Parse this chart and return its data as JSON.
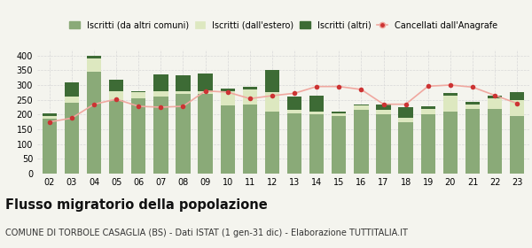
{
  "years": [
    "02",
    "03",
    "04",
    "05",
    "06",
    "07",
    "08",
    "09",
    "10",
    "11",
    "12",
    "13",
    "14",
    "15",
    "16",
    "17",
    "18",
    "19",
    "20",
    "21",
    "22",
    "23"
  ],
  "iscritti_altri_comuni": [
    185,
    240,
    345,
    250,
    255,
    260,
    270,
    270,
    230,
    235,
    210,
    205,
    200,
    195,
    215,
    200,
    175,
    200,
    210,
    220,
    220,
    195
  ],
  "iscritti_estero": [
    10,
    20,
    45,
    28,
    20,
    18,
    8,
    10,
    50,
    50,
    65,
    10,
    10,
    10,
    15,
    15,
    15,
    18,
    55,
    15,
    35,
    55
  ],
  "iscritti_altri": [
    8,
    50,
    8,
    40,
    5,
    58,
    55,
    58,
    8,
    8,
    75,
    45,
    55,
    5,
    5,
    20,
    35,
    10,
    8,
    8,
    8,
    25
  ],
  "cancellati": [
    175,
    188,
    235,
    252,
    228,
    225,
    228,
    280,
    276,
    254,
    264,
    272,
    295,
    295,
    285,
    235,
    235,
    296,
    300,
    293,
    265,
    238
  ],
  "color_altri_comuni": "#8aaa78",
  "color_estero": "#dde8c0",
  "color_altri": "#3d6b35",
  "color_cancellati": "#cc3333",
  "color_cancellati_line": "#f0a8a0",
  "background_color": "#f4f4ee",
  "grid_color": "#d8d8d8",
  "ylim": [
    0,
    420
  ],
  "yticks": [
    0,
    50,
    100,
    150,
    200,
    250,
    300,
    350,
    400
  ],
  "title": "Flusso migratorio della popolazione",
  "subtitle": "COMUNE DI TORBOLE CASAGLIA (BS) - Dati ISTAT (1 gen-31 dic) - Elaborazione TUTTITALIA.IT",
  "legend_labels": [
    "Iscritti (da altri comuni)",
    "Iscritti (dall'estero)",
    "Iscritti (altri)",
    "Cancellati dall'Anagrafe"
  ],
  "title_fontsize": 10.5,
  "subtitle_fontsize": 7,
  "legend_fontsize": 7,
  "tick_fontsize": 7
}
